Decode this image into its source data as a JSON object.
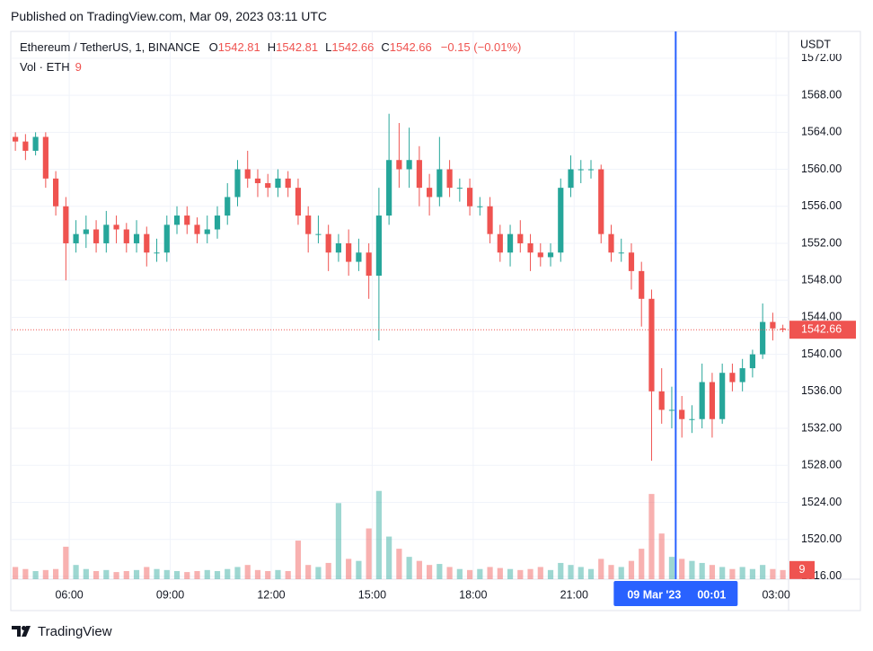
{
  "header": "Published on TradingView.com, Mar 09, 2023 03:11 UTC",
  "footer": "TradingView",
  "chart_data": {
    "type": "candlestick",
    "legend": {
      "symbol": "Ethereum / TetherUS, 1, BINANCE",
      "ohlc": [
        {
          "label": "O",
          "value": 1542.81
        },
        {
          "label": "H",
          "value": 1542.81
        },
        {
          "label": "L",
          "value": 1542.66
        },
        {
          "label": "C",
          "value": 1542.66
        }
      ],
      "change": "−0.15 (−0.01%)"
    },
    "volume_legend": {
      "label": "Vol · ETH",
      "value": 9
    },
    "currency": "USDT",
    "last_price": 1542.66,
    "up_color": "#26a69a",
    "down_color": "#ef5350",
    "crosshair": {
      "x": 24.017,
      "date": "09 Mar '23",
      "time": "00:01",
      "color": "#2962ff"
    },
    "xlim": [
      4.29,
      27.37
    ],
    "xticks": [
      {
        "value": 6,
        "label": "06:00"
      },
      {
        "value": 9,
        "label": "09:00"
      },
      {
        "value": 12,
        "label": "12:00"
      },
      {
        "value": 15,
        "label": "15:00"
      },
      {
        "value": 18,
        "label": "18:00"
      },
      {
        "value": 21,
        "label": "21:00"
      },
      {
        "value": 27,
        "label": "03:00"
      }
    ],
    "ylim": [
      1515.7,
      1574.9
    ],
    "yticks": [
      {
        "value": 1516,
        "label": "1516.00"
      },
      {
        "value": 1520,
        "label": "1520.00"
      },
      {
        "value": 1524,
        "label": "1524.00"
      },
      {
        "value": 1528,
        "label": "1528.00"
      },
      {
        "value": 1532,
        "label": "1532.00"
      },
      {
        "value": 1536,
        "label": "1536.00"
      },
      {
        "value": 1540,
        "label": "1540.00"
      },
      {
        "value": 1544,
        "label": "1544.00"
      },
      {
        "value": 1548,
        "label": "1548.00"
      },
      {
        "value": 1552,
        "label": "1552.00"
      },
      {
        "value": 1556,
        "label": "1556.00"
      },
      {
        "value": 1560,
        "label": "1560.00"
      },
      {
        "value": 1564,
        "label": "1564.00"
      },
      {
        "value": 1568,
        "label": "1568.00"
      },
      {
        "value": 1572,
        "label": "1572.00"
      }
    ],
    "grid": true,
    "volume_ylim": [
      0,
      540
    ],
    "x": [
      4.4,
      4.7,
      5,
      5.3,
      5.6,
      5.9,
      6.2,
      6.5,
      6.8,
      7.1,
      7.4,
      7.7,
      8,
      8.3,
      8.6,
      8.9,
      9.2,
      9.5,
      9.8,
      10.1,
      10.4,
      10.7,
      11,
      11.3,
      11.6,
      11.9,
      12.2,
      12.5,
      12.8,
      13.1,
      13.4,
      13.7,
      14,
      14.3,
      14.6,
      14.9,
      15.2,
      15.5,
      15.8,
      16.1,
      16.4,
      16.7,
      17,
      17.3,
      17.6,
      17.9,
      18.2,
      18.5,
      18.8,
      19.1,
      19.4,
      19.7,
      20,
      20.3,
      20.6,
      20.9,
      21.2,
      21.5,
      21.8,
      22.1,
      22.4,
      22.7,
      23,
      23.3,
      23.6,
      23.9,
      24.2,
      24.5,
      24.8,
      25.1,
      25.4,
      25.7,
      26,
      26.3,
      26.6,
      26.9,
      27.2
    ],
    "open": [
      1563.5,
      1563,
      1562,
      1563.5,
      1559,
      1556,
      1552,
      1553,
      1553.5,
      1552,
      1554,
      1553.5,
      1552,
      1553,
      1551,
      1551,
      1554,
      1555,
      1554,
      1553,
      1553.5,
      1555,
      1557,
      1560,
      1559,
      1558.5,
      1558,
      1559,
      1558,
      1555,
      1553,
      1553,
      1551,
      1552,
      1550,
      1551,
      1548.5,
      1555,
      1561,
      1560,
      1561,
      1558,
      1557,
      1560,
      1558,
      1558,
      1556,
      1556,
      1553,
      1551,
      1553,
      1552,
      1551,
      1550.5,
      1551,
      1558,
      1560,
      1560,
      1560,
      1553,
      1551,
      1551,
      1549,
      1546,
      1536,
      1534,
      1534,
      1533,
      1533,
      1537,
      1533,
      1538,
      1537,
      1538.5,
      1540,
      1543.5,
      1542.8
    ],
    "high": [
      1564,
      1563.8,
      1564,
      1564,
      1559.8,
      1557,
      1554.5,
      1555,
      1554.5,
      1555.5,
      1555,
      1554.2,
      1554.5,
      1553.8,
      1552.5,
      1555,
      1556,
      1556,
      1554.8,
      1555,
      1556,
      1558.5,
      1561,
      1562,
      1560,
      1559.5,
      1560,
      1559.8,
      1559,
      1556,
      1555,
      1554,
      1553,
      1553.5,
      1552.5,
      1552,
      1558,
      1566,
      1565,
      1564.5,
      1562.5,
      1559.5,
      1563.5,
      1561,
      1559,
      1559,
      1557,
      1557,
      1554,
      1554,
      1554.5,
      1553,
      1552,
      1552,
      1559,
      1561.5,
      1561,
      1561,
      1560.5,
      1554,
      1552.5,
      1552,
      1550,
      1547,
      1538.5,
      1536.5,
      1535.5,
      1534.5,
      1539,
      1538,
      1539,
      1539,
      1539.5,
      1540.5,
      1545.5,
      1544.5,
      1543.2
    ],
    "low": [
      1562,
      1561,
      1561.5,
      1558,
      1555,
      1548,
      1551,
      1551.5,
      1551,
      1551,
      1552,
      1551,
      1551,
      1549.5,
      1550,
      1550,
      1553,
      1553,
      1552,
      1552,
      1552.5,
      1554,
      1556,
      1558,
      1557,
      1557,
      1557,
      1557,
      1554,
      1551,
      1552,
      1549,
      1550,
      1548.5,
      1549,
      1546,
      1541.5,
      1554,
      1558,
      1558,
      1556,
      1555,
      1556,
      1557,
      1556.5,
      1555,
      1555,
      1552,
      1550,
      1549.5,
      1551,
      1549,
      1549.5,
      1549.5,
      1550,
      1557,
      1558.5,
      1559,
      1552,
      1550,
      1550,
      1547,
      1543,
      1528.5,
      1532.5,
      1532,
      1531,
      1531.5,
      1532,
      1531,
      1532.5,
      1536,
      1536,
      1537.5,
      1539.5,
      1541.5,
      1542.4
    ],
    "close": [
      1563,
      1562,
      1563.5,
      1559,
      1556,
      1552,
      1553,
      1553.5,
      1552,
      1554,
      1553.5,
      1552,
      1553,
      1551,
      1551,
      1554,
      1555,
      1554,
      1553,
      1553.5,
      1555,
      1557,
      1560,
      1559,
      1558.5,
      1558,
      1559,
      1558,
      1555,
      1553,
      1553,
      1551,
      1552,
      1550,
      1551,
      1548.5,
      1555,
      1561,
      1560,
      1561,
      1558,
      1557,
      1560,
      1558,
      1558,
      1556,
      1556,
      1553,
      1551,
      1553,
      1552,
      1551,
      1550.5,
      1551,
      1558,
      1560,
      1560,
      1560,
      1553,
      1551,
      1551,
      1549,
      1546,
      1536,
      1534,
      1534,
      1533,
      1533,
      1537,
      1533,
      1538,
      1537,
      1538.5,
      1540,
      1543.5,
      1542.8,
      1542.66
    ],
    "volumes": [
      12,
      10,
      8,
      9,
      10,
      32,
      14,
      10,
      8,
      9,
      7,
      8,
      9,
      12,
      10,
      9,
      8,
      7,
      8,
      9,
      8,
      10,
      12,
      14,
      9,
      8,
      9,
      8,
      38,
      14,
      12,
      16,
      75,
      20,
      18,
      50,
      87,
      42,
      30,
      22,
      18,
      14,
      15,
      12,
      10,
      9,
      10,
      12,
      11,
      10,
      9,
      10,
      12,
      9,
      16,
      14,
      12,
      10,
      20,
      14,
      12,
      18,
      30,
      84,
      45,
      22,
      20,
      18,
      16,
      14,
      12,
      10,
      12,
      10,
      14,
      10,
      9
    ]
  }
}
